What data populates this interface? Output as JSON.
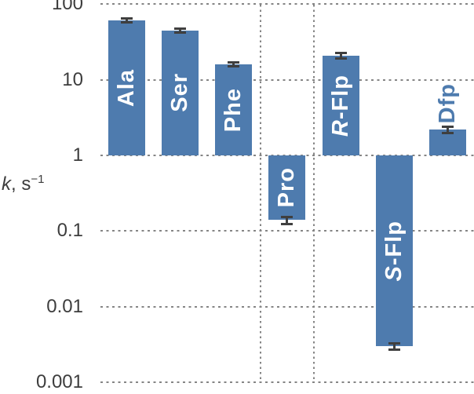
{
  "chart_data": {
    "type": "bar",
    "yscale": "log",
    "ylim": [
      0.001,
      100
    ],
    "yticks": [
      100,
      10,
      1,
      0.1,
      0.01,
      0.001
    ],
    "ytick_labels": [
      "100",
      "10",
      "1",
      "0.1",
      "0.01",
      "0.001"
    ],
    "ylabel_parts": {
      "variable": "k",
      "unit": ", s",
      "exponent": "−1"
    },
    "baseline": 1,
    "grid": "dotted",
    "legend": "none",
    "categories": [
      "Ala",
      "Ser",
      "Phe",
      "Pro",
      "R-Flp",
      "S-Flp",
      "Dfp"
    ],
    "bars": [
      {
        "label": "Ala",
        "label_italic": "",
        "label_rest": "Ala",
        "value": 61,
        "error": 6,
        "label_placement": "inside"
      },
      {
        "label": "Ser",
        "label_italic": "",
        "label_rest": "Ser",
        "value": 45,
        "error": 4,
        "label_placement": "inside"
      },
      {
        "label": "Phe",
        "label_italic": "",
        "label_rest": "Phe",
        "value": 16,
        "error": 1.5,
        "label_placement": "inside"
      },
      {
        "label": "Pro",
        "label_italic": "",
        "label_rest": "Pro",
        "value": 0.14,
        "error": 0.02,
        "label_placement": "inside"
      },
      {
        "label": "R-Flp",
        "label_italic": "R",
        "label_rest": "-Flp",
        "value": 21,
        "error": 2.5,
        "label_placement": "inside"
      },
      {
        "label": "S-Flp",
        "label_italic": "S",
        "label_rest": "-Flp",
        "value": 0.003,
        "error": 0.0004,
        "label_placement": "inside"
      },
      {
        "label": "Dfp",
        "label_italic": "",
        "label_rest": "Dfp",
        "value": 2.2,
        "error": 0.3,
        "label_placement": "outside"
      }
    ],
    "group_separators_between": [
      [
        "Phe",
        "Pro"
      ],
      [
        "Pro",
        "R-Flp"
      ]
    ],
    "colors": {
      "bar": "#4e7bae",
      "bar_label": "#ffffff",
      "outside_label": "#4e7bae",
      "error_bar": "#3f3f3f",
      "gridline": "#858585",
      "tick_label": "#3d3d3d"
    }
  }
}
